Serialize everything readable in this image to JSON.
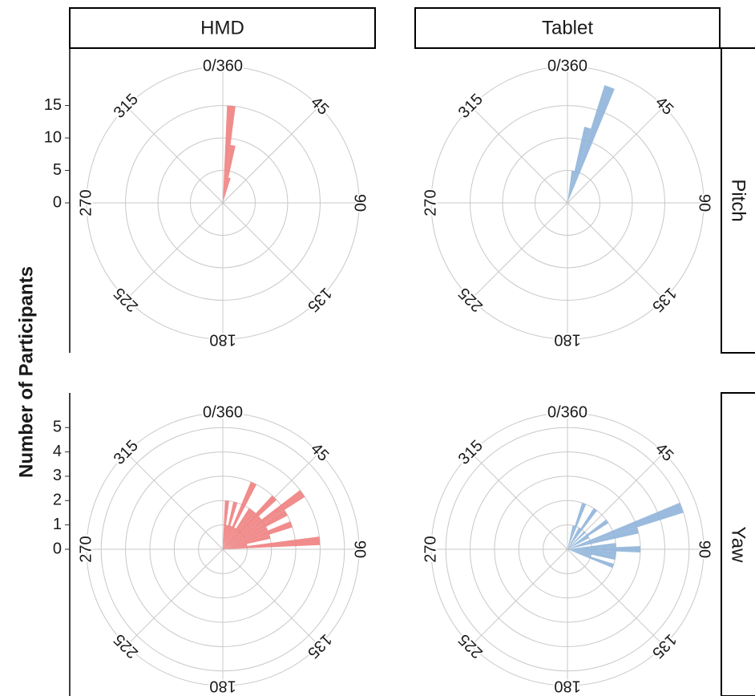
{
  "chart_data": {
    "type": "polar-bar",
    "y_label": "Number of Participants",
    "columns": [
      "HMD",
      "Tablet"
    ],
    "colors": [
      "#f08080",
      "#8fb4d9"
    ],
    "xlim": [
      0,
      360
    ],
    "xticks": [
      {
        "value": 0,
        "label": "0/360"
      },
      45,
      90,
      135,
      180,
      225,
      270,
      315
    ],
    "rows": [
      {
        "name": "Pitch",
        "ylim": [
          0,
          21
        ],
        "yticks": [
          0,
          5,
          10,
          15
        ],
        "cells": [
          {
            "x": [
              5,
              10,
              15
            ],
            "values": [
              15,
              9,
              4
            ]
          },
          {
            "x": [
              10,
              15,
              20
            ],
            "values": [
              5,
              12,
              19
            ]
          }
        ]
      },
      {
        "name": "Yaw",
        "ylim": [
          0,
          5.6
        ],
        "yticks": [
          0,
          1,
          2,
          3,
          4,
          5
        ],
        "cells": [
          {
            "x": [
              5,
              10,
              15,
              20,
              25,
              30,
              35,
              40,
              45,
              50,
              55,
              60,
              65,
              70,
              75,
              80,
              85
            ],
            "values": [
              2,
              1,
              2,
              1,
              3,
              1,
              2,
              2,
              3,
              2,
              4,
              3,
              2,
              3,
              2,
              1,
              4
            ]
          },
          {
            "x": [
              15,
              20,
              30,
              35,
              45,
              55,
              60,
              70,
              75,
              85,
              90,
              95,
              100,
              105,
              110
            ],
            "values": [
              1,
              2,
              1,
              2,
              1,
              2,
              1,
              5,
              3,
              2,
              3,
              2,
              2,
              1,
              2
            ]
          }
        ]
      }
    ]
  }
}
